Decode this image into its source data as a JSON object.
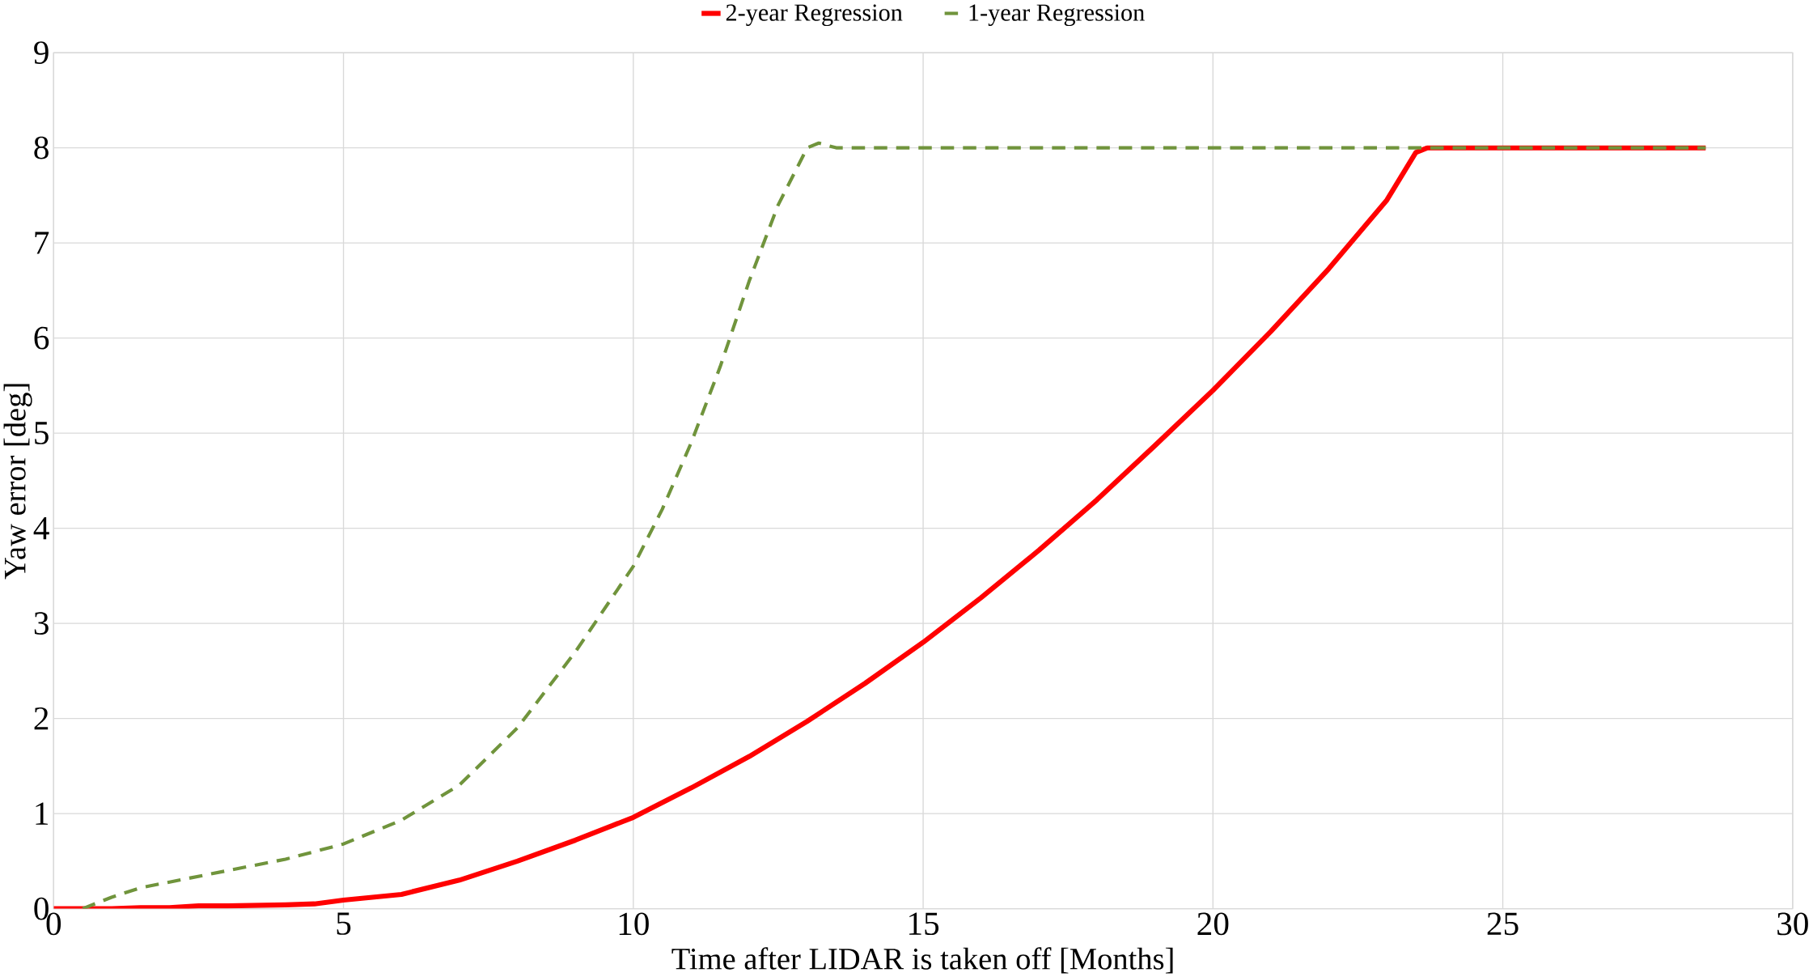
{
  "chart_data": {
    "type": "line",
    "xlabel": "Time after LIDAR is taken off [Months]",
    "ylabel": "Yaw error [deg]",
    "xlim": [
      0,
      30
    ],
    "ylim": [
      0,
      9
    ],
    "xticks": [
      0,
      5,
      10,
      15,
      20,
      25,
      30
    ],
    "yticks": [
      0,
      1,
      2,
      3,
      4,
      5,
      6,
      7,
      8,
      9
    ],
    "grid": true,
    "legend": "top",
    "marker": "none",
    "series": [
      {
        "name": "2-year Regression",
        "color": "#ff0000",
        "line_style": "solid",
        "x": [
          0,
          1,
          1.5,
          2,
          2.5,
          3,
          4,
          4.5,
          5,
          6,
          7,
          8,
          9,
          10,
          11,
          12,
          13,
          14,
          15,
          16,
          17,
          18,
          19,
          20,
          21,
          22,
          23,
          23.5,
          23.7,
          28.5
        ],
        "values": [
          0,
          0,
          0.01,
          0.01,
          0.03,
          0.03,
          0.04,
          0.05,
          0.09,
          0.15,
          0.3,
          0.5,
          0.72,
          0.96,
          1.27,
          1.6,
          1.97,
          2.37,
          2.8,
          3.27,
          3.77,
          4.3,
          4.87,
          5.45,
          6.07,
          6.73,
          7.45,
          7.95,
          8.0,
          8.0
        ]
      },
      {
        "name": "1-year Regression",
        "color": "#70943c",
        "line_style": "dashed",
        "x": [
          0.5,
          1,
          1.5,
          2,
          3,
          4,
          5,
          6,
          7,
          8,
          9,
          10,
          10.5,
          11,
          11.5,
          12,
          12.5,
          13,
          13.2,
          13.5,
          28.5
        ],
        "values": [
          0,
          0.12,
          0.22,
          0.28,
          0.4,
          0.52,
          0.68,
          0.93,
          1.3,
          1.9,
          2.7,
          3.6,
          4.2,
          4.9,
          5.7,
          6.6,
          7.4,
          8.0,
          8.05,
          8.0,
          8.0
        ]
      }
    ]
  }
}
